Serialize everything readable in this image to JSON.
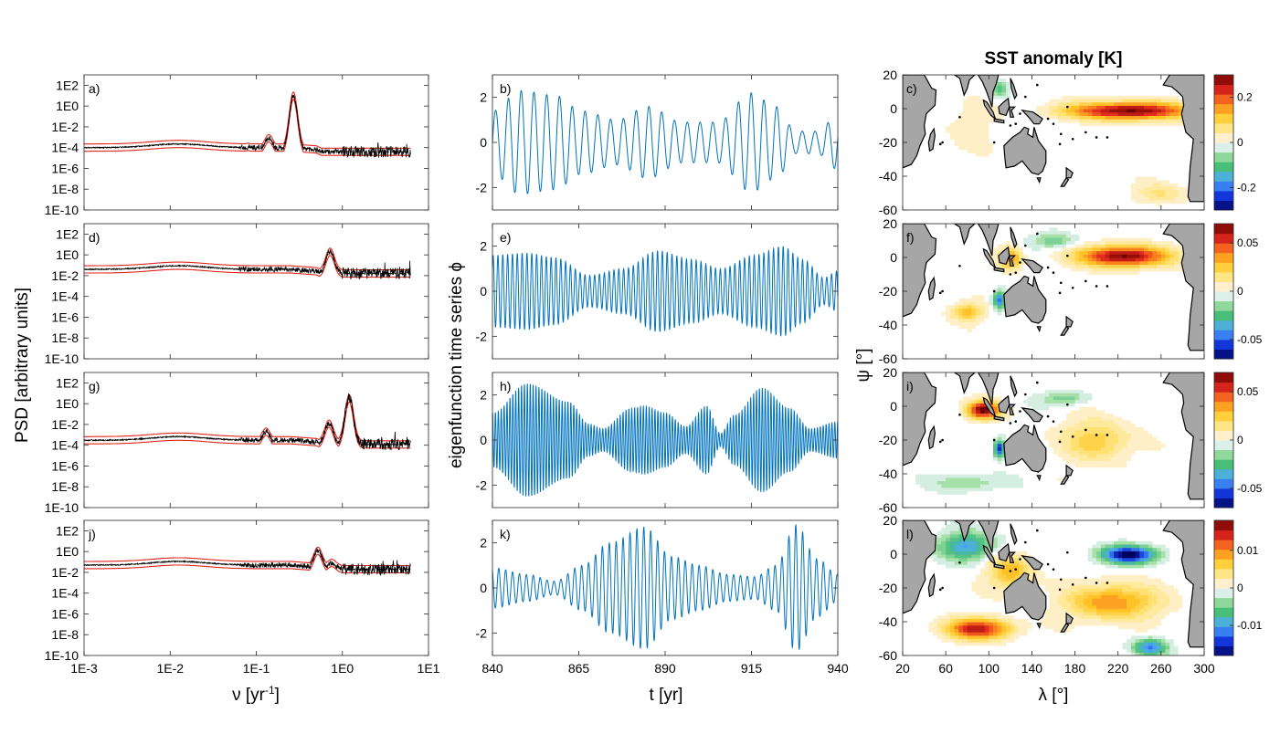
{
  "colors": {
    "psd_line": "#000000",
    "psd_band": "#e4261c",
    "ts_line": "#0072bd",
    "land": "#a6a6a6"
  },
  "chart_data": [
    {
      "id": "a",
      "type": "line",
      "panel_label": "a)",
      "xscale": "log",
      "yscale": "log",
      "xlim": [
        0.001,
        10
      ],
      "ylim": [
        1e-10,
        1000
      ],
      "peaks": [
        {
          "nu": 0.27,
          "psd": 25
        },
        {
          "nu": 0.14,
          "psd": 0.002
        },
        {
          "nu": 0.08,
          "psd": 0.0003
        }
      ],
      "plateau": 0.0001
    },
    {
      "id": "d",
      "type": "line",
      "panel_label": "d)",
      "xscale": "log",
      "yscale": "log",
      "xlim": [
        0.001,
        10
      ],
      "ylim": [
        1e-10,
        1000
      ],
      "peaks": [
        {
          "nu": 0.72,
          "psd": 5
        },
        {
          "nu": 0.5,
          "psd": 0.001
        }
      ],
      "plateau": 0.04
    },
    {
      "id": "g",
      "type": "line",
      "panel_label": "g)",
      "xscale": "log",
      "yscale": "log",
      "xlim": [
        0.001,
        10
      ],
      "ylim": [
        1e-10,
        1000
      ],
      "peaks": [
        {
          "nu": 1.2,
          "psd": 8
        },
        {
          "nu": 0.7,
          "psd": 0.03
        },
        {
          "nu": 0.13,
          "psd": 0.005
        }
      ],
      "plateau": 0.0003
    },
    {
      "id": "j",
      "type": "line",
      "panel_label": "j)",
      "xscale": "log",
      "yscale": "log",
      "xlim": [
        0.001,
        10
      ],
      "ylim": [
        1e-10,
        1000
      ],
      "peaks": [
        {
          "nu": 0.52,
          "psd": 3
        },
        {
          "nu": 0.75,
          "psd": 0.2
        }
      ],
      "plateau": 0.05
    },
    {
      "id": "b",
      "type": "line",
      "panel_label": "b)",
      "xlim": [
        840,
        940
      ],
      "ylim": [
        -3,
        3
      ],
      "period_yr": 3.7,
      "envelope": [
        [
          840,
          1.4
        ],
        [
          848,
          2.3
        ],
        [
          858,
          2.1
        ],
        [
          866,
          1.4
        ],
        [
          876,
          1.0
        ],
        [
          885,
          1.6
        ],
        [
          895,
          0.9
        ],
        [
          905,
          0.9
        ],
        [
          915,
          2.2
        ],
        [
          922,
          1.6
        ],
        [
          928,
          0.5
        ],
        [
          934,
          0.5
        ],
        [
          940,
          1.2
        ]
      ]
    },
    {
      "id": "e",
      "type": "line",
      "panel_label": "e)",
      "xlim": [
        840,
        940
      ],
      "ylim": [
        -3,
        3
      ],
      "period_yr": 1.4,
      "envelope": [
        [
          840,
          1.6
        ],
        [
          850,
          1.7
        ],
        [
          858,
          1.5
        ],
        [
          868,
          0.7
        ],
        [
          878,
          1.0
        ],
        [
          888,
          1.8
        ],
        [
          898,
          1.4
        ],
        [
          906,
          1.0
        ],
        [
          916,
          1.6
        ],
        [
          924,
          2.0
        ],
        [
          930,
          1.4
        ],
        [
          936,
          0.6
        ],
        [
          940,
          0.9
        ]
      ]
    },
    {
      "id": "h",
      "type": "line",
      "panel_label": "h)",
      "xlim": [
        840,
        940
      ],
      "ylim": [
        -3,
        3
      ],
      "period_yr": 0.84,
      "envelope": [
        [
          840,
          1.2
        ],
        [
          850,
          2.5
        ],
        [
          862,
          1.7
        ],
        [
          868,
          0.7
        ],
        [
          872,
          0.5
        ],
        [
          880,
          1.4
        ],
        [
          884,
          1.5
        ],
        [
          890,
          1.2
        ],
        [
          896,
          0.6
        ],
        [
          902,
          1.5
        ],
        [
          906,
          0.3
        ],
        [
          910,
          1.1
        ],
        [
          918,
          2.3
        ],
        [
          926,
          1.4
        ],
        [
          932,
          0.5
        ],
        [
          940,
          0.8
        ]
      ]
    },
    {
      "id": "k",
      "type": "line",
      "panel_label": "k)",
      "xlim": [
        840,
        940
      ],
      "ylim": [
        -3,
        3
      ],
      "period_yr": 2.0,
      "envelope": [
        [
          840,
          0.9
        ],
        [
          850,
          0.6
        ],
        [
          858,
          0.3
        ],
        [
          866,
          1.0
        ],
        [
          874,
          2.0
        ],
        [
          884,
          2.7
        ],
        [
          892,
          1.4
        ],
        [
          900,
          1.0
        ],
        [
          908,
          0.6
        ],
        [
          916,
          0.5
        ],
        [
          922,
          1.0
        ],
        [
          928,
          2.8
        ],
        [
          934,
          1.3
        ],
        [
          940,
          0.6
        ]
      ]
    },
    {
      "id": "c",
      "type": "heatmap",
      "panel_label": "c)",
      "xlim": [
        20,
        300
      ],
      "ylim": [
        -60,
        20
      ],
      "clim": [
        -0.3,
        0.3
      ],
      "colorbar_ticks": [
        {
          "v": 0.2,
          "label": "0.2"
        },
        {
          "v": 0,
          "label": "0"
        },
        {
          "v": -0.2,
          "label": "-0.2"
        }
      ],
      "features": [
        {
          "lon": 230,
          "lat": -1,
          "slon": 55,
          "slat": 5,
          "amp": 0.3
        },
        {
          "lon": 110,
          "lat": 12,
          "slon": 8,
          "slat": 5,
          "amp": -0.1
        },
        {
          "lon": 260,
          "lat": -50,
          "slon": 25,
          "slat": 6,
          "amp": 0.06
        },
        {
          "lon": 80,
          "lat": -10,
          "slon": 20,
          "slat": 15,
          "amp": 0.03
        }
      ]
    },
    {
      "id": "f",
      "type": "heatmap",
      "panel_label": "f)",
      "xlim": [
        20,
        300
      ],
      "ylim": [
        -60,
        20
      ],
      "clim": [
        -0.07,
        0.07
      ],
      "colorbar_ticks": [
        {
          "v": 0.05,
          "label": "0.05"
        },
        {
          "v": 0,
          "label": "0"
        },
        {
          "v": -0.05,
          "label": "-0.05"
        }
      ],
      "features": [
        {
          "lon": 225,
          "lat": 1,
          "slon": 40,
          "slat": 6,
          "amp": 0.07
        },
        {
          "lon": 120,
          "lat": 0,
          "slon": 10,
          "slat": 6,
          "amp": 0.04
        },
        {
          "lon": 80,
          "lat": -32,
          "slon": 15,
          "slat": 5,
          "amp": 0.03
        },
        {
          "lon": 110,
          "lat": -25,
          "slon": 6,
          "slat": 5,
          "amp": -0.05
        },
        {
          "lon": 160,
          "lat": 10,
          "slon": 20,
          "slat": 4,
          "amp": -0.02
        }
      ]
    },
    {
      "id": "i",
      "type": "heatmap",
      "panel_label": "i)",
      "xlim": [
        20,
        300
      ],
      "ylim": [
        -60,
        20
      ],
      "clim": [
        -0.07,
        0.07
      ],
      "colorbar_ticks": [
        {
          "v": 0.05,
          "label": "0.05"
        },
        {
          "v": 0,
          "label": "0"
        },
        {
          "v": -0.05,
          "label": "-0.05"
        }
      ],
      "features": [
        {
          "lon": 95,
          "lat": -2,
          "slon": 15,
          "slat": 5,
          "amp": 0.07
        },
        {
          "lon": 110,
          "lat": -25,
          "slon": 5,
          "slat": 5,
          "amp": -0.06
        },
        {
          "lon": 200,
          "lat": -20,
          "slon": 30,
          "slat": 12,
          "amp": 0.025
        },
        {
          "lon": 170,
          "lat": 5,
          "slon": 20,
          "slat": 4,
          "amp": -0.02
        },
        {
          "lon": 80,
          "lat": -45,
          "slon": 30,
          "slat": 5,
          "amp": -0.015
        }
      ]
    },
    {
      "id": "l",
      "type": "heatmap",
      "panel_label": "l)",
      "xlim": [
        20,
        300
      ],
      "ylim": [
        -60,
        20
      ],
      "clim": [
        -0.018,
        0.018
      ],
      "colorbar_ticks": [
        {
          "v": 0.01,
          "label": "0.01"
        },
        {
          "v": 0,
          "label": "0"
        },
        {
          "v": -0.01,
          "label": "-0.01"
        }
      ],
      "features": [
        {
          "lon": 230,
          "lat": 0,
          "slon": 25,
          "slat": 5,
          "amp": -0.018
        },
        {
          "lon": 90,
          "lat": -44,
          "slon": 30,
          "slat": 6,
          "amp": 0.015
        },
        {
          "lon": 215,
          "lat": -28,
          "slon": 40,
          "slat": 10,
          "amp": 0.01
        },
        {
          "lon": 120,
          "lat": -10,
          "slon": 20,
          "slat": 10,
          "amp": 0.008
        },
        {
          "lon": 80,
          "lat": 5,
          "slon": 25,
          "slat": 8,
          "amp": -0.01
        },
        {
          "lon": 250,
          "lat": -55,
          "slon": 15,
          "slat": 5,
          "amp": -0.012
        }
      ]
    }
  ],
  "axes": {
    "psd_ylabel": "PSD [arbitrary units]",
    "psd_xlabel": "ν [yr",
    "psd_xlabel_sup": "-1",
    "psd_xlabel_end": "]",
    "ts_ylabel": "eigenfunction time series ϕ",
    "ts_xlabel": "t [yr]",
    "map_ylabel": "ψ [°]",
    "map_xlabel": "λ [°]",
    "map_title": "SST anomaly [K]",
    "psd_xticks": [
      {
        "v": 0.001,
        "label": "1E-3"
      },
      {
        "v": 0.01,
        "label": "1E-2"
      },
      {
        "v": 0.1,
        "label": "1E-1"
      },
      {
        "v": 1,
        "label": "1E0"
      },
      {
        "v": 10,
        "label": "1E1"
      }
    ],
    "psd_yticks": [
      {
        "v": 100,
        "label": "1E2"
      },
      {
        "v": 1,
        "label": "1E0"
      },
      {
        "v": 0.01,
        "label": "1E-2"
      },
      {
        "v": 0.0001,
        "label": "1E-4"
      },
      {
        "v": 1e-06,
        "label": "1E-6"
      },
      {
        "v": 1e-08,
        "label": "1E-8"
      },
      {
        "v": 1e-10,
        "label": "1E-10"
      }
    ],
    "ts_xticks": [
      {
        "v": 840,
        "label": "840"
      },
      {
        "v": 865,
        "label": "865"
      },
      {
        "v": 890,
        "label": "890"
      },
      {
        "v": 915,
        "label": "915"
      },
      {
        "v": 940,
        "label": "940"
      }
    ],
    "ts_yticks": [
      {
        "v": 2,
        "label": "2"
      },
      {
        "v": 0,
        "label": "0"
      },
      {
        "v": -2,
        "label": "-2"
      }
    ],
    "map_xticks": [
      {
        "v": 20,
        "label": "20"
      },
      {
        "v": 60,
        "label": "60"
      },
      {
        "v": 100,
        "label": "100"
      },
      {
        "v": 140,
        "label": "140"
      },
      {
        "v": 180,
        "label": "180"
      },
      {
        "v": 220,
        "label": "220"
      },
      {
        "v": 260,
        "label": "260"
      },
      {
        "v": 300,
        "label": "300"
      }
    ],
    "map_yticks": [
      {
        "v": 20,
        "label": "20"
      },
      {
        "v": 0,
        "label": "0"
      },
      {
        "v": -20,
        "label": "-20"
      },
      {
        "v": -40,
        "label": "-40"
      },
      {
        "v": -60,
        "label": "-60"
      }
    ]
  }
}
